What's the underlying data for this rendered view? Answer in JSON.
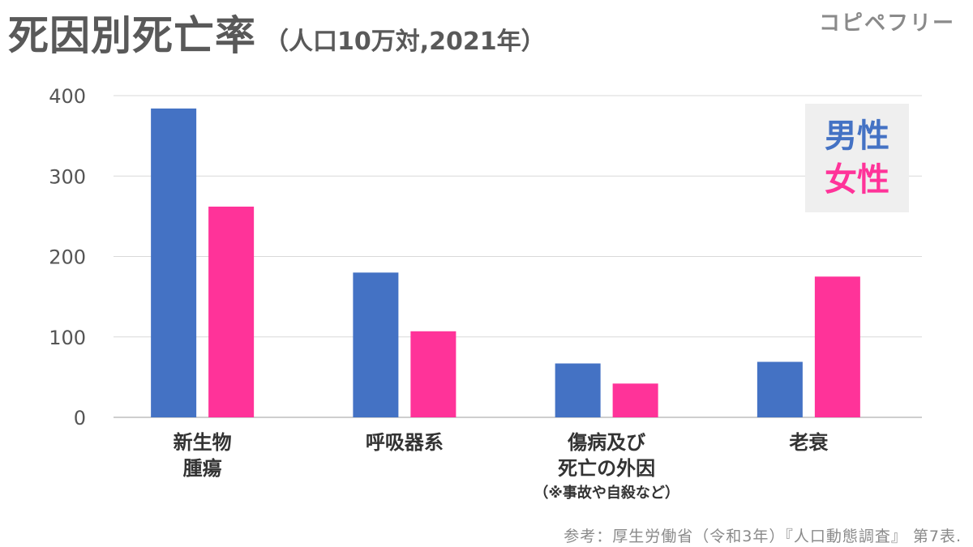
{
  "title": {
    "main": "死因別死亡率",
    "sub": "（人口10万対,2021年）"
  },
  "watermark": "コピペフリー",
  "source": "参考：厚生労働省（令和3年）『人口動態調査』 第7表.",
  "chart_data": {
    "type": "bar",
    "categories": [
      {
        "lines": [
          "新生物",
          "腫瘍"
        ],
        "note": ""
      },
      {
        "lines": [
          "呼吸器系"
        ],
        "note": ""
      },
      {
        "lines": [
          "傷病及び",
          "死亡の外因"
        ],
        "note": "（※事故や自殺など）"
      },
      {
        "lines": [
          "老衰"
        ],
        "note": ""
      }
    ],
    "series": [
      {
        "name": "男性",
        "color": "#4472c4",
        "values": [
          384,
          180,
          67,
          69
        ]
      },
      {
        "name": "女性",
        "color": "#ff3399",
        "values": [
          262,
          107,
          42,
          175
        ]
      }
    ],
    "ylim": [
      0,
      400
    ],
    "yticks": [
      "0",
      "100",
      "200",
      "300",
      "400"
    ],
    "grid": true,
    "legend_position": "top-right"
  }
}
